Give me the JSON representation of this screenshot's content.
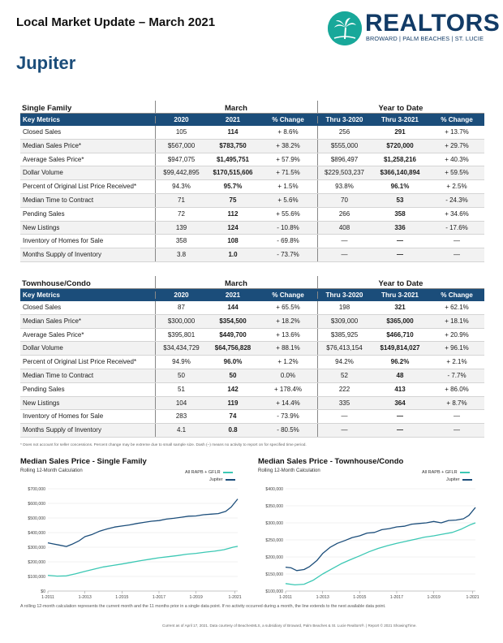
{
  "header": {
    "title": "Local Market Update – March 2021",
    "logo_name": "REALTORS",
    "logo_sub": "BROWARD | PALM BEACHES | ST. LUCIE",
    "city": "Jupiter"
  },
  "colors": {
    "navy": "#1b4d7a",
    "teal": "#3cc8b4",
    "logo_teal": "#18a89a"
  },
  "single_family": {
    "section": "Single Family",
    "group_march": "March",
    "group_ytd": "Year to Date",
    "headers": [
      "Key Metrics",
      "2020",
      "2021",
      "% Change",
      "Thru 3-2020",
      "Thru 3-2021",
      "% Change"
    ],
    "rows": [
      [
        "Closed Sales",
        "105",
        "114",
        "+ 8.6%",
        "256",
        "291",
        "+ 13.7%"
      ],
      [
        "Median Sales Price*",
        "$567,000",
        "$783,750",
        "+ 38.2%",
        "$555,000",
        "$720,000",
        "+ 29.7%"
      ],
      [
        "Average Sales Price*",
        "$947,075",
        "$1,495,751",
        "+ 57.9%",
        "$896,497",
        "$1,258,216",
        "+ 40.3%"
      ],
      [
        "Dollar Volume",
        "$99,442,895",
        "$170,515,606",
        "+ 71.5%",
        "$229,503,237",
        "$366,140,894",
        "+ 59.5%"
      ],
      [
        "Percent of Original List Price Received*",
        "94.3%",
        "95.7%",
        "+ 1.5%",
        "93.8%",
        "96.1%",
        "+ 2.5%"
      ],
      [
        "Median Time to Contract",
        "71",
        "75",
        "+ 5.6%",
        "70",
        "53",
        "- 24.3%"
      ],
      [
        "Pending Sales",
        "72",
        "112",
        "+ 55.6%",
        "266",
        "358",
        "+ 34.6%"
      ],
      [
        "New Listings",
        "139",
        "124",
        "- 10.8%",
        "408",
        "336",
        "- 17.6%"
      ],
      [
        "Inventory of Homes for Sale",
        "358",
        "108",
        "- 69.8%",
        "—",
        "—",
        "—"
      ],
      [
        "Months Supply of Inventory",
        "3.8",
        "1.0",
        "- 73.7%",
        "—",
        "—",
        "—"
      ]
    ]
  },
  "townhouse": {
    "section": "Townhouse/Condo",
    "group_march": "March",
    "group_ytd": "Year to Date",
    "headers": [
      "Key Metrics",
      "2020",
      "2021",
      "% Change",
      "Thru 3-2020",
      "Thru 3-2021",
      "% Change"
    ],
    "rows": [
      [
        "Closed Sales",
        "87",
        "144",
        "+ 65.5%",
        "198",
        "321",
        "+ 62.1%"
      ],
      [
        "Median Sales Price*",
        "$300,000",
        "$354,500",
        "+ 18.2%",
        "$309,000",
        "$365,000",
        "+ 18.1%"
      ],
      [
        "Average Sales Price*",
        "$395,801",
        "$449,700",
        "+ 13.6%",
        "$385,925",
        "$466,710",
        "+ 20.9%"
      ],
      [
        "Dollar Volume",
        "$34,434,729",
        "$64,756,828",
        "+ 88.1%",
        "$76,413,154",
        "$149,814,027",
        "+ 96.1%"
      ],
      [
        "Percent of Original List Price Received*",
        "94.9%",
        "96.0%",
        "+ 1.2%",
        "94.2%",
        "96.2%",
        "+ 2.1%"
      ],
      [
        "Median Time to Contract",
        "50",
        "50",
        "0.0%",
        "52",
        "48",
        "- 7.7%"
      ],
      [
        "Pending Sales",
        "51",
        "142",
        "+ 178.4%",
        "222",
        "413",
        "+ 86.0%"
      ],
      [
        "New Listings",
        "104",
        "119",
        "+ 14.4%",
        "335",
        "364",
        "+ 8.7%"
      ],
      [
        "Inventory of Homes for Sale",
        "283",
        "74",
        "- 73.9%",
        "—",
        "—",
        "—"
      ],
      [
        "Months Supply of Inventory",
        "4.1",
        "0.8",
        "- 80.5%",
        "—",
        "—",
        "—"
      ]
    ]
  },
  "footnote": "* Does not account for seller concessions. Percent change may be extreme due to small sample size. Dash (–) means no activity to report on for specified time period.",
  "chart_data": [
    {
      "type": "line",
      "title": "Median Sales Price - Single Family",
      "subtitle": "Rolling 12-Month Calculation",
      "x_ticks": [
        "1-2011",
        "1-2013",
        "1-2015",
        "1-2017",
        "1-2019",
        "1-2021"
      ],
      "y_ticks": [
        "$0",
        "$100,000",
        "$200,000",
        "$300,000",
        "$400,000",
        "$500,000",
        "$600,000",
        "$700,000"
      ],
      "ylim": [
        0,
        700000
      ],
      "x_range": [
        2011,
        2021.25
      ],
      "series": [
        {
          "name": "All RAPB + GFLR",
          "color": "#3cc8b4",
          "points": [
            [
              2011,
              108000
            ],
            [
              2011.5,
              102000
            ],
            [
              2012,
              104000
            ],
            [
              2012.5,
              118000
            ],
            [
              2013,
              135000
            ],
            [
              2013.5,
              150000
            ],
            [
              2014,
              165000
            ],
            [
              2014.5,
              175000
            ],
            [
              2015,
              185000
            ],
            [
              2015.5,
              196000
            ],
            [
              2016,
              208000
            ],
            [
              2016.5,
              218000
            ],
            [
              2017,
              228000
            ],
            [
              2017.5,
              235000
            ],
            [
              2018,
              243000
            ],
            [
              2018.5,
              252000
            ],
            [
              2019,
              258000
            ],
            [
              2019.5,
              266000
            ],
            [
              2020,
              273000
            ],
            [
              2020.5,
              283000
            ],
            [
              2021,
              300000
            ],
            [
              2021.25,
              306000
            ]
          ]
        },
        {
          "name": "Jupiter",
          "color": "#1b4d7a",
          "points": [
            [
              2011,
              330000
            ],
            [
              2011.3,
              322000
            ],
            [
              2011.6,
              315000
            ],
            [
              2012,
              305000
            ],
            [
              2012.3,
              320000
            ],
            [
              2012.7,
              345000
            ],
            [
              2013,
              372000
            ],
            [
              2013.4,
              388000
            ],
            [
              2013.8,
              410000
            ],
            [
              2014.2,
              425000
            ],
            [
              2014.6,
              438000
            ],
            [
              2015,
              445000
            ],
            [
              2015.4,
              452000
            ],
            [
              2015.8,
              462000
            ],
            [
              2016.2,
              470000
            ],
            [
              2016.6,
              478000
            ],
            [
              2017,
              482000
            ],
            [
              2017.4,
              492000
            ],
            [
              2017.8,
              498000
            ],
            [
              2018.2,
              505000
            ],
            [
              2018.6,
              512000
            ],
            [
              2019,
              514000
            ],
            [
              2019.4,
              522000
            ],
            [
              2019.8,
              526000
            ],
            [
              2020.2,
              530000
            ],
            [
              2020.6,
              545000
            ],
            [
              2020.9,
              575000
            ],
            [
              2021.25,
              630000
            ]
          ]
        }
      ]
    },
    {
      "type": "line",
      "title": "Median Sales Price - Townhouse/Condo",
      "subtitle": "Rolling 12-Month Calculation",
      "x_ticks": [
        "1-2011",
        "1-2013",
        "1-2015",
        "1-2017",
        "1-2019",
        "1-2021"
      ],
      "y_ticks": [
        "$100,000",
        "$150,000",
        "$200,000",
        "$250,000",
        "$300,000",
        "$350,000",
        "$400,000"
      ],
      "ylim": [
        100000,
        400000
      ],
      "x_range": [
        2011,
        2021.25
      ],
      "series": [
        {
          "name": "All RAPB + GFLR",
          "color": "#3cc8b4",
          "points": [
            [
              2011,
              122000
            ],
            [
              2011.5,
              118000
            ],
            [
              2012,
              120000
            ],
            [
              2012.5,
              132000
            ],
            [
              2013,
              150000
            ],
            [
              2013.5,
              165000
            ],
            [
              2014,
              180000
            ],
            [
              2014.5,
              192000
            ],
            [
              2015,
              203000
            ],
            [
              2015.5,
              215000
            ],
            [
              2016,
              225000
            ],
            [
              2016.5,
              233000
            ],
            [
              2017,
              240000
            ],
            [
              2017.5,
              246000
            ],
            [
              2018,
              252000
            ],
            [
              2018.5,
              258000
            ],
            [
              2019,
              262000
            ],
            [
              2019.5,
              267000
            ],
            [
              2020,
              272000
            ],
            [
              2020.5,
              282000
            ],
            [
              2021,
              295000
            ],
            [
              2021.25,
              300000
            ]
          ]
        },
        {
          "name": "Jupiter",
          "color": "#1b4d7a",
          "points": [
            [
              2011,
              170000
            ],
            [
              2011.3,
              168000
            ],
            [
              2011.6,
              160000
            ],
            [
              2012,
              163000
            ],
            [
              2012.3,
              172000
            ],
            [
              2012.7,
              190000
            ],
            [
              2013,
              210000
            ],
            [
              2013.4,
              228000
            ],
            [
              2013.8,
              240000
            ],
            [
              2014.2,
              248000
            ],
            [
              2014.6,
              257000
            ],
            [
              2015,
              262000
            ],
            [
              2015.4,
              270000
            ],
            [
              2015.8,
              272000
            ],
            [
              2016.2,
              280000
            ],
            [
              2016.6,
              283000
            ],
            [
              2017,
              288000
            ],
            [
              2017.4,
              290000
            ],
            [
              2017.8,
              296000
            ],
            [
              2018.2,
              298000
            ],
            [
              2018.6,
              300000
            ],
            [
              2019,
              304000
            ],
            [
              2019.4,
              300000
            ],
            [
              2019.8,
              307000
            ],
            [
              2020.2,
              308000
            ],
            [
              2020.6,
              312000
            ],
            [
              2020.9,
              322000
            ],
            [
              2021.25,
              345000
            ]
          ]
        }
      ]
    }
  ],
  "bottom_note": "A rolling 12-month calculation represents the current month and the 11 months prior in a single data point. If no activity occurred during a month, the line extends to the next available data point.",
  "credit": "Current as of April 17, 2021. Data courtesy of BeachesMLS, a subsidiary of Broward, Palm Beaches & St. Lucie Realtors®. | Report © 2021 ShowingTime."
}
